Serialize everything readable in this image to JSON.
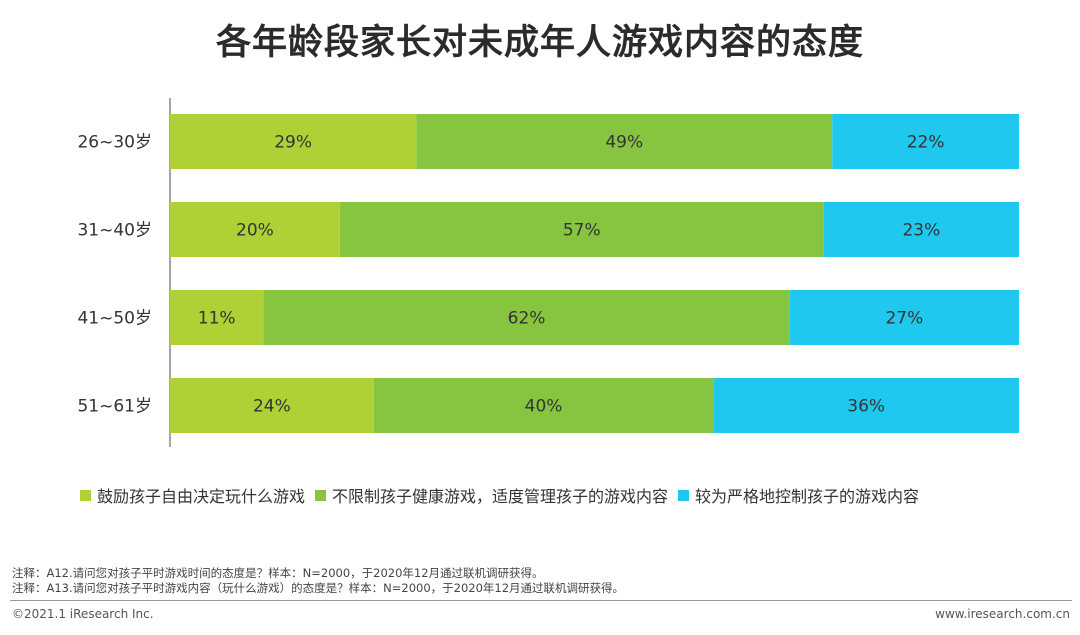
{
  "title": "各年龄段家长对未成年人游戏内容的态度",
  "chart_data": {
    "type": "bar",
    "orientation": "horizontal",
    "stacked": true,
    "percent": true,
    "categories": [
      "26~30岁",
      "31~40岁",
      "41~50岁",
      "51~61岁"
    ],
    "series": [
      {
        "name": "鼓励孩子自由决定玩什么游戏",
        "color": "#afd135",
        "values": [
          29,
          20,
          11,
          24
        ],
        "labels": [
          "29%",
          "20%",
          "11%",
          "24%"
        ]
      },
      {
        "name": "不限制孩子健康游戏，适度管理孩子的游戏内容",
        "color": "#87c540",
        "values": [
          49,
          57,
          62,
          40
        ],
        "labels": [
          "49%",
          "57%",
          "62%",
          "40%"
        ]
      },
      {
        "name": "较为严格地控制孩子的游戏内容",
        "color": "#1fc8ef",
        "values": [
          22,
          23,
          27,
          36
        ],
        "labels": [
          "22%",
          "23%",
          "27%",
          "36%"
        ]
      }
    ],
    "xlim": [
      0,
      100
    ],
    "legend_position": "bottom",
    "grid": false
  },
  "notes": [
    "注释：A12.请问您对孩子平时游戏时间的态度是？样本：N=2000，于2020年12月通过联机调研获得。",
    "注释：A13.请问您对孩子平时游戏内容（玩什么游戏）的态度是？样本：N=2000，于2020年12月通过联机调研获得。"
  ],
  "footer": {
    "copyright": "©2021.1 iResearch Inc.",
    "website": "www.iresearch.com.cn"
  }
}
